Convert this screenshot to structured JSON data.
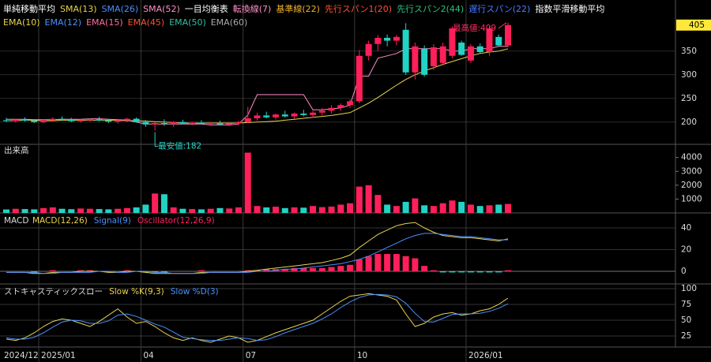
{
  "chart_data": [
    {
      "type": "candlestick",
      "categories": [
        "2024/12",
        null,
        null,
        null,
        "2025/01",
        null,
        null,
        null,
        null,
        null,
        null,
        null,
        null,
        null,
        null,
        "04",
        null,
        null,
        null,
        null,
        null,
        null,
        null,
        null,
        null,
        null,
        "07",
        null,
        null,
        null,
        null,
        null,
        null,
        null,
        null,
        null,
        null,
        null,
        "10",
        null,
        null,
        null,
        null,
        null,
        null,
        null,
        null,
        null,
        null,
        null,
        "2026/01",
        null,
        null,
        null,
        null
      ],
      "open": [
        204,
        202,
        205,
        203,
        200,
        204,
        207,
        205,
        202,
        204,
        206,
        203,
        201,
        204,
        207,
        200,
        195,
        198,
        196,
        200,
        197,
        199,
        196,
        198,
        195,
        197,
        200,
        208,
        214,
        210,
        216,
        212,
        218,
        215,
        220,
        224,
        230,
        236,
        244,
        340,
        365,
        378,
        372,
        395,
        305,
        355,
        318,
        325,
        340,
        368,
        330,
        360,
        348,
        380,
        362
      ],
      "high": [
        209,
        207,
        210,
        206,
        205,
        210,
        212,
        209,
        206,
        208,
        211,
        207,
        206,
        209,
        210,
        204,
        200,
        206,
        202,
        205,
        201,
        204,
        200,
        203,
        200,
        203,
        232,
        220,
        222,
        218,
        224,
        220,
        226,
        224,
        230,
        236,
        240,
        248,
        352,
        372,
        384,
        385,
        384,
        409,
        368,
        362,
        365,
        368,
        402,
        372,
        365,
        366,
        402,
        385,
        410
      ],
      "low": [
        200,
        199,
        201,
        198,
        197,
        201,
        203,
        200,
        199,
        201,
        202,
        198,
        197,
        200,
        199,
        190,
        182,
        192,
        190,
        195,
        193,
        195,
        192,
        194,
        191,
        193,
        198,
        203,
        208,
        205,
        210,
        207,
        212,
        209,
        214,
        218,
        224,
        230,
        240,
        330,
        350,
        360,
        362,
        300,
        290,
        296,
        310,
        320,
        335,
        340,
        325,
        345,
        340,
        360,
        358
      ],
      "close": [
        202,
        205,
        203,
        200,
        204,
        207,
        205,
        202,
        204,
        206,
        203,
        201,
        204,
        207,
        200,
        195,
        198,
        196,
        200,
        197,
        199,
        196,
        198,
        195,
        197,
        200,
        208,
        214,
        210,
        216,
        212,
        218,
        215,
        220,
        224,
        230,
        236,
        244,
        340,
        365,
        378,
        372,
        380,
        305,
        360,
        300,
        358,
        360,
        398,
        342,
        360,
        348,
        398,
        362,
        405
      ],
      "up_color": "#ff1f5a",
      "down_color": "#22d3c5",
      "legend": [
        {
          "title": "単純移動平均",
          "items": [
            {
              "name": "SMA(13)",
              "color": "#e8d44d",
              "values": [
                203,
                203,
                204,
                204,
                203,
                203,
                204,
                204,
                204,
                204,
                204,
                204,
                204,
                203,
                203,
                202,
                201,
                200,
                199,
                198,
                198,
                198,
                198,
                198,
                198,
                198,
                199,
                200,
                201,
                202,
                204,
                206,
                208,
                210,
                212,
                214,
                217,
                220,
                230,
                240,
                252,
                265,
                278,
                290,
                300,
                308,
                315,
                322,
                328,
                334,
                340,
                345,
                348,
                350,
                355
              ]
            },
            {
              "name": "SMA(26)",
              "color": "#4a90ff"
            },
            {
              "name": "SMA(52)",
              "color": "#ff8fc8"
            }
          ]
        },
        {
          "title": "一目均衡表",
          "items": [
            {
              "name": "転換線(7)",
              "color": "#ff8fc8",
              "values": [
                206,
                206,
                206,
                205,
                205,
                205,
                206,
                206,
                206,
                207,
                207,
                206,
                205,
                204,
                200,
                196,
                196,
                196,
                196,
                196,
                196,
                196,
                194,
                194,
                194,
                196,
                215,
                258,
                258,
                258,
                258,
                258,
                258,
                226,
                226,
                228,
                230,
                236,
                297,
                297,
                335,
                340,
                345,
                355,
                355,
                355,
                355,
                355,
                350,
                350,
                355,
                355,
                355,
                360,
                360
              ]
            },
            {
              "name": "基準線(22)",
              "color": "#f0b030"
            },
            {
              "name": "先行スパン1(20)",
              "color": "#ff5030"
            },
            {
              "name": "先行スパン2(44)",
              "color": "#2ec27e"
            },
            {
              "name": "遅行スパン(22)",
              "color": "#4a7bff"
            }
          ]
        },
        {
          "title": "指数平滑移動平均",
          "items": [
            {
              "name": "EMA(10)",
              "color": "#e8d44d"
            },
            {
              "name": "EMA(12)",
              "color": "#4a90ff"
            },
            {
              "name": "EMA(15)",
              "color": "#ff6fa0"
            },
            {
              "name": "EMA(45)",
              "color": "#ff5030"
            },
            {
              "name": "EMA(50)",
              "color": "#2ec2a0"
            },
            {
              "name": "EMA(60)",
              "color": "#aaaaaa"
            }
          ]
        }
      ],
      "annotations": [
        {
          "text": "最高値:409",
          "color": "#ff3060"
        },
        {
          "text": "最安値:182",
          "color": "#22d3c5"
        }
      ],
      "ylim": [
        153,
        458
      ],
      "yticks": [
        200,
        250,
        300,
        350
      ],
      "grid": true
    },
    {
      "type": "bar",
      "title": "出来高",
      "values": [
        250,
        300,
        280,
        260,
        350,
        400,
        300,
        270,
        320,
        300,
        280,
        260,
        300,
        350,
        400,
        600,
        1400,
        1350,
        400,
        300,
        280,
        260,
        300,
        350,
        320,
        400,
        4350,
        500,
        400,
        450,
        350,
        400,
        380,
        500,
        420,
        460,
        600,
        700,
        1900,
        2000,
        1300,
        600,
        500,
        800,
        1050,
        550,
        500,
        700,
        900,
        800,
        600,
        500,
        550,
        600,
        650
      ],
      "ylim": [
        0,
        4950
      ],
      "yticks": [
        1000,
        2000,
        3000,
        4000
      ],
      "grid": false
    },
    {
      "type": "macd",
      "title": "MACD",
      "series": [
        {
          "name": "MACD(12,26)",
          "color": "#e8d44d",
          "values": [
            -1,
            -1,
            -1,
            -2,
            -2,
            -1,
            -1,
            -1,
            0,
            0,
            0,
            -1,
            -1,
            0,
            0,
            -1,
            -2,
            -2,
            -2,
            -2,
            -2,
            -1,
            -1,
            -1,
            -1,
            -1,
            0,
            1,
            2,
            3,
            4,
            5,
            6,
            7,
            8,
            10,
            12,
            15,
            22,
            28,
            34,
            38,
            42,
            44,
            45,
            40,
            36,
            33,
            32,
            31,
            31,
            30,
            29,
            28,
            30
          ]
        },
        {
          "name": "Signal(9)",
          "color": "#4a90ff",
          "values": [
            -1,
            -1,
            -1,
            -1,
            -2,
            -2,
            -1,
            -1,
            -1,
            -1,
            0,
            0,
            -1,
            -1,
            0,
            0,
            -1,
            -1,
            -2,
            -2,
            -2,
            -2,
            -1,
            -1,
            -1,
            -1,
            -1,
            0,
            0,
            1,
            2,
            2,
            3,
            4,
            5,
            6,
            7,
            9,
            11,
            14,
            18,
            22,
            26,
            30,
            33,
            35,
            35,
            34,
            33,
            32,
            32,
            31,
            30,
            29,
            29
          ]
        },
        {
          "name": "Oscillator(12,26,9)",
          "color": "#ff2060",
          "values": [
            0,
            0,
            0,
            -1,
            0,
            1,
            0,
            0,
            1,
            1,
            0,
            -1,
            0,
            1,
            0,
            -1,
            -1,
            -1,
            0,
            0,
            0,
            1,
            0,
            0,
            0,
            0,
            1,
            1,
            2,
            2,
            2,
            3,
            3,
            3,
            3,
            4,
            5,
            6,
            11,
            14,
            16,
            16,
            16,
            14,
            12,
            5,
            1,
            -1,
            -1,
            -1,
            -1,
            -1,
            -1,
            -1,
            1
          ]
        }
      ],
      "ylim": [
        -11.6,
        53.8
      ],
      "yticks": [
        0,
        20,
        40
      ],
      "grid": true
    },
    {
      "type": "line",
      "title": "ストキャスティックスロー",
      "series": [
        {
          "name": "Slow %K(9,3)",
          "color": "#e8d44d",
          "values": [
            20,
            18,
            22,
            30,
            40,
            48,
            52,
            50,
            45,
            40,
            48,
            58,
            68,
            55,
            45,
            48,
            40,
            30,
            22,
            18,
            22,
            18,
            15,
            20,
            25,
            22,
            15,
            18,
            24,
            30,
            35,
            40,
            45,
            50,
            60,
            70,
            80,
            88,
            90,
            92,
            90,
            88,
            82,
            60,
            40,
            45,
            55,
            60,
            62,
            58,
            60,
            65,
            68,
            75,
            85
          ]
        },
        {
          "name": "Slow %D(3)",
          "color": "#4a90ff",
          "values": [
            22,
            20,
            20,
            23,
            30,
            39,
            47,
            50,
            49,
            45,
            45,
            49,
            58,
            60,
            56,
            50,
            44,
            39,
            31,
            23,
            21,
            19,
            18,
            18,
            20,
            22,
            21,
            18,
            19,
            24,
            30,
            35,
            40,
            45,
            52,
            60,
            70,
            79,
            86,
            90,
            91,
            90,
            87,
            77,
            61,
            48,
            47,
            53,
            59,
            60,
            60,
            61,
            64,
            69,
            76
          ]
        }
      ],
      "ylim": [
        7.5,
        107.5
      ],
      "yticks": [
        25,
        50,
        75,
        100
      ],
      "grid": true
    }
  ]
}
